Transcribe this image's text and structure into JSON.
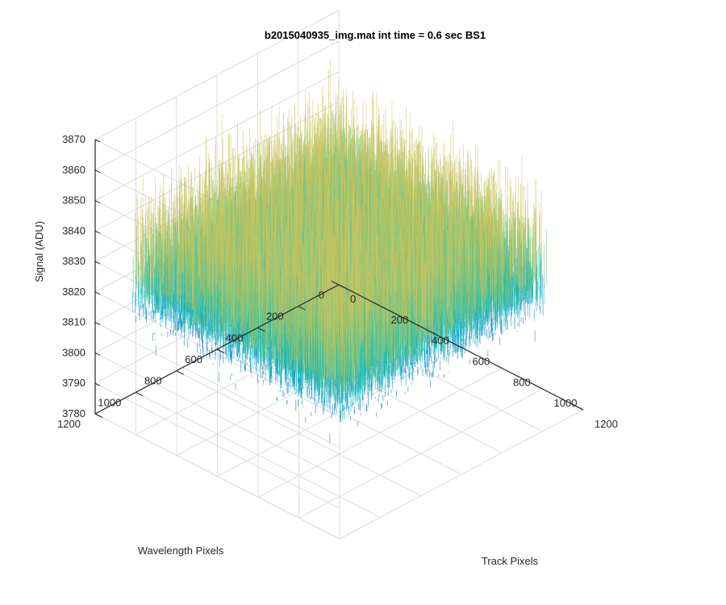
{
  "chart_data": {
    "type": "surface",
    "title": "b2015040935_img.mat int time = 0.6 sec   BS1",
    "xlabel": "Track Pixels",
    "ylabel": "Wavelength Pixels",
    "zlabel": "Signal (ADU)",
    "xlim": [
      0,
      1200
    ],
    "ylim": [
      0,
      1200
    ],
    "zlim": [
      3780,
      3870
    ],
    "xticks": [
      "0",
      "200",
      "400",
      "600",
      "800",
      "1000",
      "1200"
    ],
    "yticks": [
      "0",
      "200",
      "400",
      "600",
      "800",
      "1000",
      "1200"
    ],
    "zticks": [
      "3780",
      "3790",
      "3800",
      "3810",
      "3820",
      "3830",
      "3840",
      "3850",
      "3860",
      "3870"
    ],
    "data_extent": {
      "x": [
        0,
        1024
      ],
      "y": [
        0,
        1024
      ]
    },
    "signal_mean": 3820,
    "signal_range": [
      3780,
      3866
    ],
    "colormap": [
      "#0072BD",
      "#00A7C8",
      "#2FBFA8",
      "#7CC47C",
      "#C8C460"
    ],
    "grid": true
  },
  "colors": {
    "axis": "#262626",
    "grid": "#dcdcdc",
    "background": "#ffffff"
  }
}
